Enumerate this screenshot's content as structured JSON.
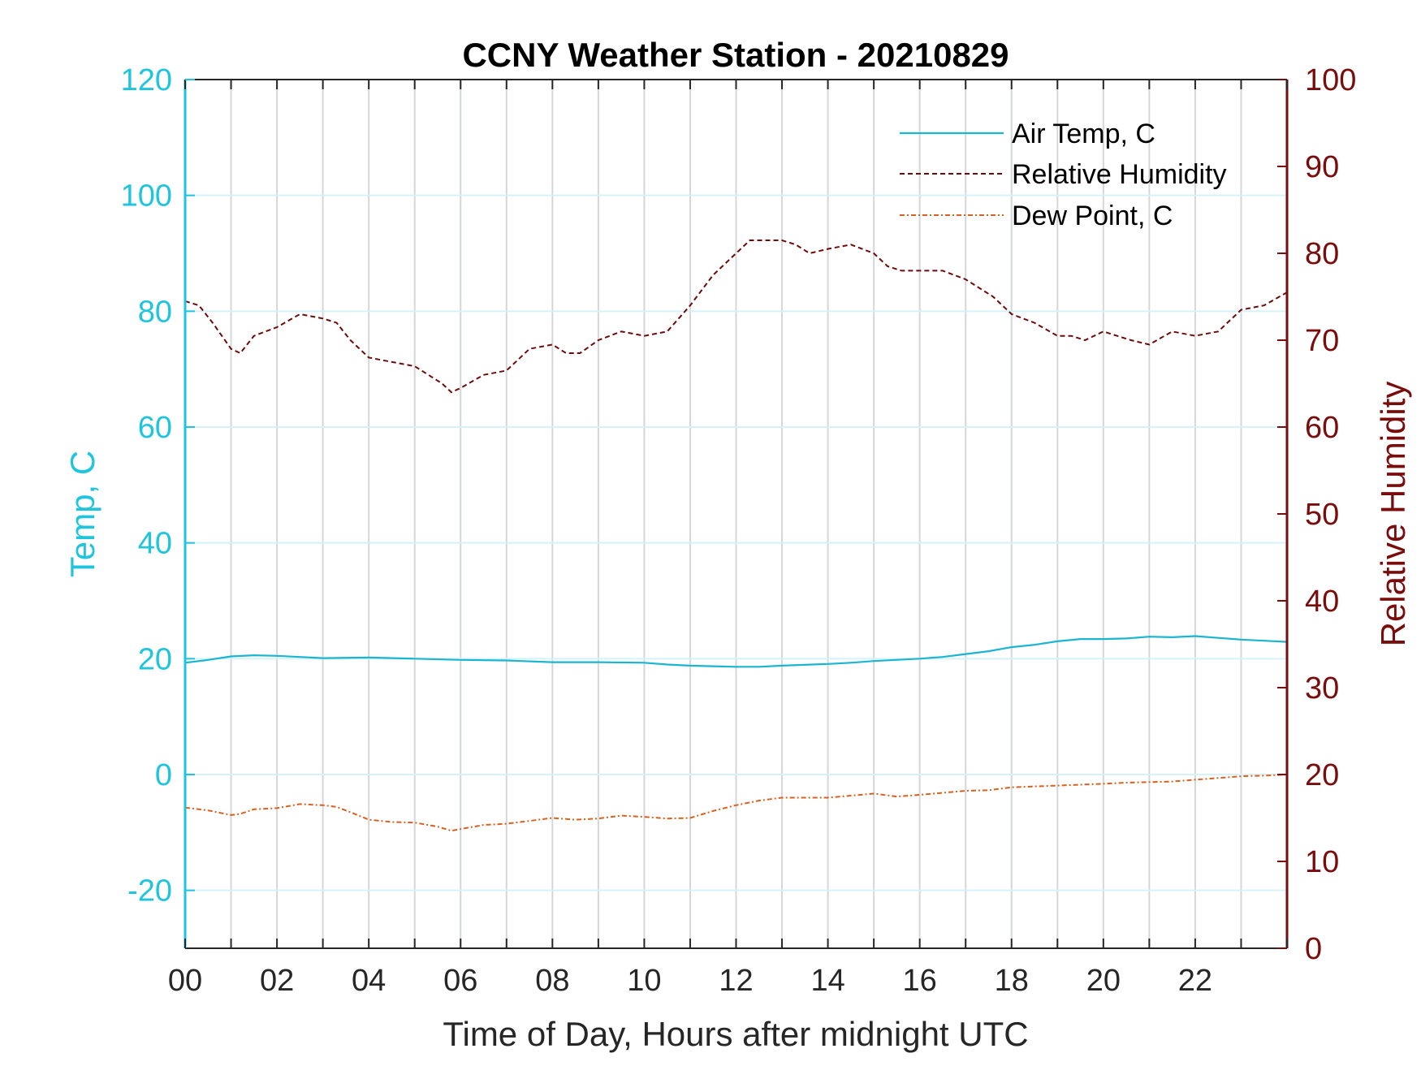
{
  "chart_data": {
    "type": "line",
    "title": "CCNY Weather Station - 20210829",
    "xlabel": "Time of Day, Hours after midnight UTC",
    "ylabel_left": "Temp, C",
    "ylabel_right": "Relative Humidity",
    "xlim": [
      0,
      24
    ],
    "ylim_left": [
      -30,
      120
    ],
    "ylim_right": [
      0,
      100
    ],
    "x_ticks": [
      0,
      2,
      4,
      6,
      8,
      10,
      12,
      14,
      16,
      18,
      20,
      22
    ],
    "x_tick_labels": [
      "00",
      "02",
      "04",
      "06",
      "08",
      "10",
      "12",
      "14",
      "16",
      "18",
      "20",
      "22"
    ],
    "y_left_ticks": [
      -20,
      0,
      20,
      40,
      60,
      80,
      100,
      120
    ],
    "y_right_ticks": [
      0,
      10,
      20,
      30,
      40,
      50,
      60,
      70,
      80,
      90,
      100
    ],
    "grid": "vertical lines every hour, horizontal lines at left ticks",
    "legend_position": "top-right",
    "colors": {
      "left_axis": "#1ec5dc",
      "right_axis": "#7a0c0c",
      "air_temp": "#1ab5d1",
      "humidity": "#6e0a0a",
      "dew_point": "#d9601f"
    },
    "series": [
      {
        "name": "Air Temp, C",
        "axis": "left",
        "style": "solid",
        "x": [
          0,
          0.5,
          1,
          1.5,
          2,
          3,
          4,
          5,
          6,
          7,
          8,
          9,
          10,
          10.5,
          11,
          11.5,
          12,
          12.5,
          13,
          14,
          14.5,
          15,
          16,
          16.5,
          17,
          17.5,
          18,
          18.5,
          19,
          19.5,
          20,
          20.5,
          21,
          21.5,
          22,
          22.5,
          23,
          23.5,
          24
        ],
        "values": [
          19.3,
          19.8,
          20.4,
          20.6,
          20.5,
          20.1,
          20.2,
          20.0,
          19.8,
          19.7,
          19.4,
          19.4,
          19.3,
          19.0,
          18.8,
          18.7,
          18.6,
          18.6,
          18.8,
          19.1,
          19.3,
          19.6,
          20.0,
          20.3,
          20.8,
          21.3,
          22.0,
          22.4,
          23.0,
          23.4,
          23.4,
          23.5,
          23.8,
          23.7,
          23.9,
          23.6,
          23.3,
          23.1,
          22.9
        ]
      },
      {
        "name": "Relative Humidity",
        "axis": "right",
        "style": "dashed",
        "x": [
          0,
          0.3,
          0.6,
          1,
          1.2,
          1.5,
          2,
          2.5,
          3,
          3.3,
          3.6,
          4,
          4.5,
          5,
          5.3,
          5.6,
          5.8,
          6,
          6.5,
          7,
          7.5,
          8,
          8.3,
          8.6,
          9,
          9.5,
          10,
          10.5,
          11,
          11.5,
          12,
          12.3,
          12.6,
          13,
          13.3,
          13.6,
          14,
          14.5,
          15,
          15.3,
          15.6,
          16,
          16.5,
          17,
          17.3,
          17.6,
          18,
          18.5,
          19,
          19.3,
          19.6,
          20,
          20.3,
          20.6,
          21,
          21.5,
          22,
          22.5,
          23,
          23.5,
          24
        ],
        "values": [
          74.5,
          74,
          72,
          69,
          68.5,
          70.5,
          71.5,
          73,
          72.5,
          72,
          70,
          68,
          67.5,
          67,
          66,
          65,
          64,
          64.5,
          66,
          66.5,
          69,
          69.5,
          68.5,
          68.5,
          70,
          71,
          70.5,
          71,
          74,
          77.5,
          80,
          81.5,
          81.5,
          81.5,
          81,
          80,
          80.5,
          81,
          80,
          78.5,
          78,
          78,
          78,
          77,
          76,
          75,
          73,
          72,
          70.5,
          70.5,
          70,
          71,
          70.5,
          70,
          69.5,
          71,
          70.5,
          71,
          73.5,
          74,
          75.5
        ]
      },
      {
        "name": "Dew Point, C",
        "axis": "left",
        "style": "dash-dot",
        "x": [
          0,
          0.5,
          1,
          1.2,
          1.5,
          2,
          2.5,
          3,
          3.3,
          3.6,
          4,
          4.5,
          5,
          5.5,
          5.8,
          6,
          6.5,
          7,
          7.5,
          8,
          8.5,
          9,
          9.5,
          10,
          10.5,
          11,
          11.5,
          12,
          12.5,
          13,
          14,
          15,
          15.5,
          16,
          17,
          17.5,
          18,
          19,
          20,
          20.5,
          21,
          21.5,
          22,
          22.5,
          23,
          23.5,
          24
        ],
        "values": [
          -5.7,
          -6.2,
          -7.0,
          -6.8,
          -6.0,
          -5.8,
          -5.1,
          -5.3,
          -5.6,
          -6.5,
          -7.8,
          -8.2,
          -8.3,
          -9.0,
          -9.7,
          -9.4,
          -8.7,
          -8.5,
          -8.0,
          -7.5,
          -7.8,
          -7.6,
          -7.1,
          -7.3,
          -7.6,
          -7.5,
          -6.3,
          -5.3,
          -4.5,
          -4.0,
          -4.0,
          -3.3,
          -3.8,
          -3.5,
          -2.8,
          -2.7,
          -2.2,
          -1.9,
          -1.6,
          -1.4,
          -1.3,
          -1.2,
          -0.9,
          -0.6,
          -0.3,
          -0.2,
          0.0
        ]
      }
    ]
  }
}
